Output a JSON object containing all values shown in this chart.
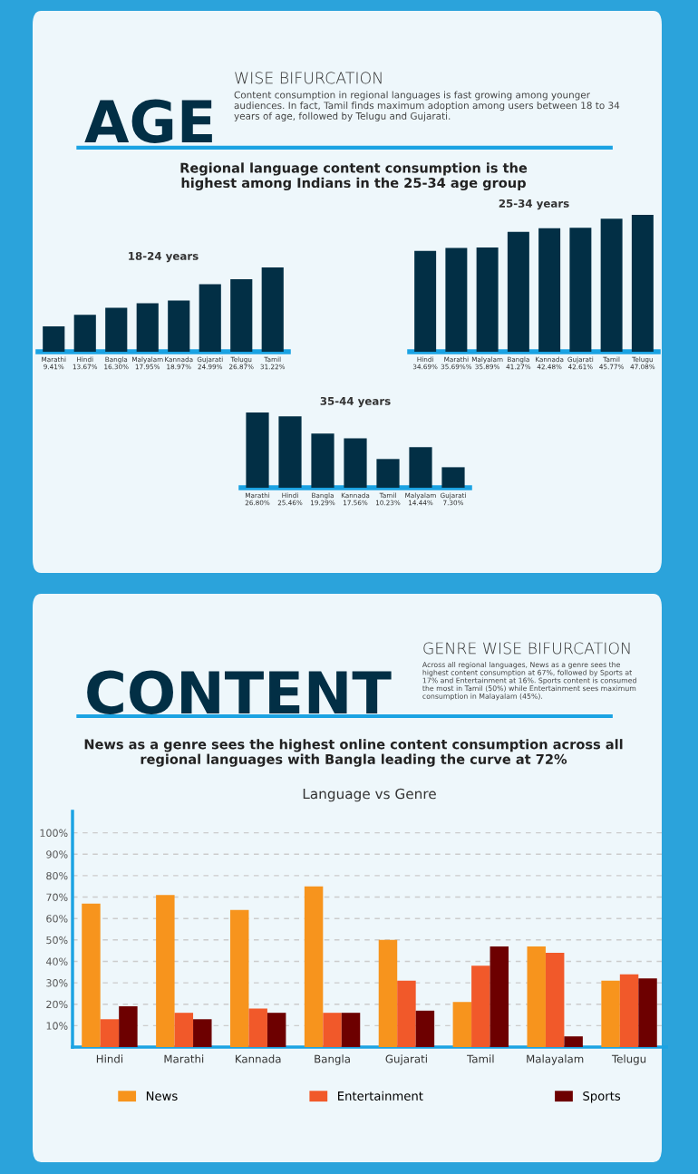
{
  "chart_data": [
    {
      "type": "other",
      "title": "AGE",
      "subtitle": "WISE BIFURCATION",
      "annotations": [
        "Content consumption in regional languages is fast growing among younger\naudiences. In fact, Tamil finds maximum adoption among users between 18 to 34\nyears of age, followed by Telugu and Gujarati.",
        "Regional language content consumption is the\nhighest among Indians in the 25-34 age group"
      ]
    },
    {
      "type": "bar",
      "title": "18-24 years",
      "categories": [
        "Marathi",
        "Hindi",
        "Bangla",
        "Malyalam",
        "Kannada",
        "Gujarati",
        "Telugu",
        "Tamil"
      ],
      "series": [
        {
          "color": "#022f45",
          "values": [
            9.41,
            13.67,
            16.3,
            17.95,
            18.97,
            24.99,
            26.87,
            31.22
          ],
          "value_labels": [
            "9.41%",
            "13.67%",
            "16.30%",
            "17.95%",
            "18.97%",
            "24.99%",
            "26.87%",
            "31.22%"
          ]
        }
      ]
    },
    {
      "type": "bar",
      "title": "25-34 years",
      "categories": [
        "Hindi",
        "Marathi",
        "Malyalam",
        "Bangla",
        "Kannada",
        "Gujarati",
        "Tamil",
        "Telugu"
      ],
      "series": [
        {
          "color": "#022f45",
          "values": [
            34.69,
            35.69,
            35.89,
            41.27,
            42.48,
            42.61,
            45.77,
            47.08
          ],
          "value_labels": [
            "34.69%",
            "35.69%%",
            "35.89%",
            "41.27%",
            "42.48%",
            "42.61%",
            "45.77%",
            "47.08%"
          ]
        }
      ]
    },
    {
      "type": "bar",
      "title": "35-44 years",
      "categories": [
        "Marathi",
        "Hindi",
        "Bangla",
        "Kannada",
        "Tamil",
        "Malyalam",
        "Gujarati"
      ],
      "series": [
        {
          "color": "#022f45",
          "values": [
            26.8,
            25.46,
            19.29,
            17.56,
            10.23,
            14.44,
            7.3
          ],
          "value_labels": [
            "26.80%",
            "25.46%",
            "19.29%",
            "17.56%",
            "10.23%",
            "14.44%",
            "7.30%"
          ]
        }
      ]
    },
    {
      "type": "other",
      "title": "CONTENT",
      "subtitle": "GENRE WISE BIFURCATION",
      "annotations": [
        "Across all regional languages, News as a genre sees the\nhighest content consumption at 67%, followed by Sports at\n17% and Entertainment at 16%. Sports content is consumed\nthe most in Tamil (50%) while Entertainment sees maximum\nconsumption in Malayalam (45%).",
        "News as a genre sees the highest online content consumption across all\nregional languages with Bangla leading the curve at 72%"
      ]
    },
    {
      "type": "bar",
      "title": "Language vs Genre",
      "categories": [
        "Hindi",
        "Marathi",
        "Kannada",
        "Bangla",
        "Gujarati",
        "Tamil",
        "Malayalam",
        "Telugu"
      ],
      "ylim": [
        0,
        110
      ],
      "yticks": [
        {
          "value": 10,
          "label": "10%"
        },
        {
          "value": 20,
          "label": "20%"
        },
        {
          "value": 30,
          "label": "30%"
        },
        {
          "value": 40,
          "label": "40%"
        },
        {
          "value": 50,
          "label": "50%"
        },
        {
          "value": 60,
          "label": "60%"
        },
        {
          "value": 70,
          "label": "70%"
        },
        {
          "value": 80,
          "label": "80%"
        },
        {
          "value": 90,
          "label": "90%"
        },
        {
          "value": 100,
          "label": "100%"
        }
      ],
      "grid": "y",
      "legend": "bottom",
      "series": [
        {
          "name": "News",
          "color": "#f7941d",
          "values": [
            67,
            71,
            64,
            75,
            50,
            21,
            47,
            31
          ]
        },
        {
          "name": "Entertainment",
          "color": "#f1592a",
          "values": [
            13,
            16,
            18,
            16,
            31,
            38,
            44,
            34
          ]
        },
        {
          "name": "Sports",
          "color": "#6d0000",
          "values": [
            19,
            13,
            16,
            16,
            17,
            47,
            5,
            32
          ]
        }
      ]
    }
  ]
}
